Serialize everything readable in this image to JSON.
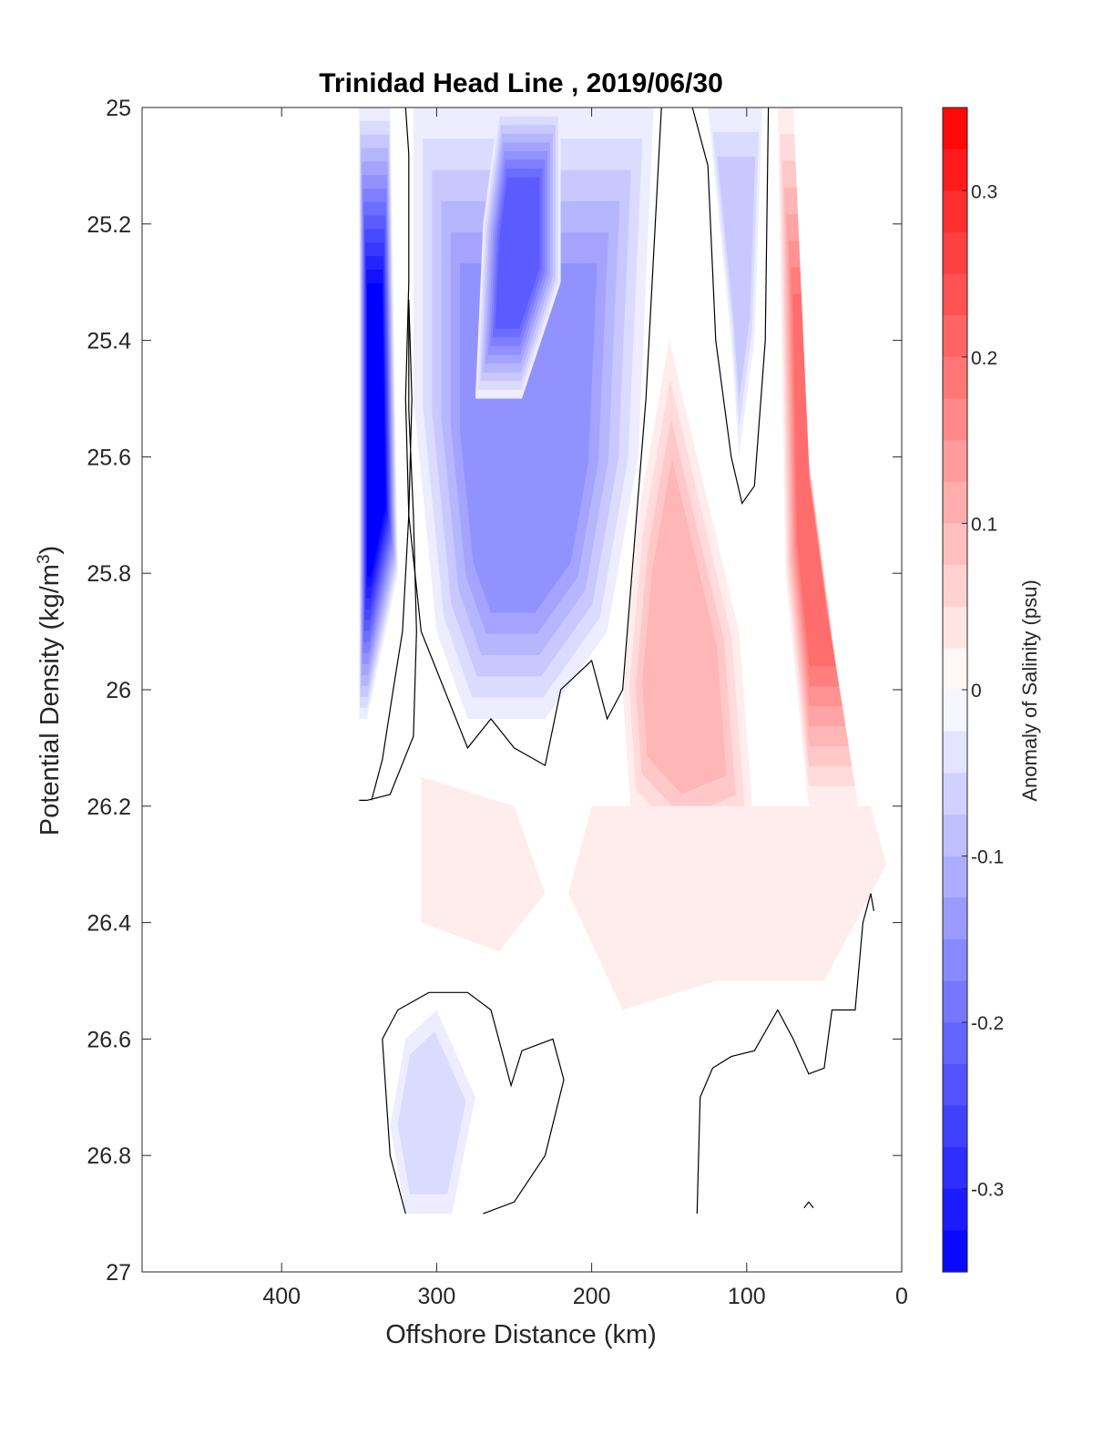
{
  "chart_data": {
    "type": "heatmap",
    "subtype": "filled-contour section",
    "title": "Trinidad Head Line , 2019/06/30",
    "xlabel": "Offshore Distance (km)",
    "ylabel": "Potential Density (kg/m",
    "ylabel_sup": "3",
    "ylabel_close": ")",
    "xlim": [
      490,
      0
    ],
    "x_reversed": true,
    "ylim": [
      25,
      27
    ],
    "y_reversed": true,
    "x_ticks": [
      400,
      300,
      200,
      100,
      0
    ],
    "y_ticks": [
      "25",
      "25.2",
      "25.4",
      "25.6",
      "25.8",
      "26",
      "26.2",
      "26.4",
      "26.6",
      "26.8",
      "27"
    ],
    "colorbar": {
      "label": "Anomaly of Salinity (psu)",
      "range": [
        -0.35,
        0.35
      ],
      "step": 0.025,
      "ticks": [
        "-0.3",
        "-0.2",
        "-0.1",
        "0",
        "0.1",
        "0.2",
        "0.3"
      ],
      "tick_values": [
        -0.3,
        -0.2,
        -0.1,
        0,
        0.1,
        0.2,
        0.3
      ],
      "colormap": "blue-white-red",
      "low_color": "#0000ff",
      "mid_color": "#ffffff",
      "high_color": "#ff0000"
    },
    "grid": false,
    "data_extent": {
      "x": [
        350,
        10
      ],
      "y": [
        25,
        26.9
      ]
    },
    "anomaly_regions": [
      {
        "name": "offshore-edge fresh",
        "x": [
          [
            350,
            25.0
          ],
          [
            330,
            25.0
          ],
          [
            325,
            25.8
          ],
          [
            345,
            26.05
          ],
          [
            350,
            26.05
          ]
        ],
        "level": -0.35
      },
      {
        "name": "offshore fresh core",
        "polygon": [
          [
            315,
            25.0
          ],
          [
            160,
            25.0
          ],
          [
            170,
            25.6
          ],
          [
            190,
            25.9
          ],
          [
            230,
            26.05
          ],
          [
            280,
            26.05
          ],
          [
            300,
            25.9
          ],
          [
            315,
            25.5
          ]
        ],
        "level": -0.15
      },
      {
        "name": "fresh core center",
        "polygon": [
          [
            260,
            25.0
          ],
          [
            220,
            25.0
          ],
          [
            220,
            25.3
          ],
          [
            245,
            25.5
          ],
          [
            275,
            25.5
          ],
          [
            270,
            25.2
          ]
        ],
        "level": -0.225
      },
      {
        "name": "nearshore fresh tongue",
        "polygon": [
          [
            125,
            25.0
          ],
          [
            90,
            25.0
          ],
          [
            95,
            25.4
          ],
          [
            105,
            25.6
          ],
          [
            110,
            25.4
          ]
        ],
        "level": -0.08
      },
      {
        "name": "coastal salty strip",
        "polygon": [
          [
            80,
            25.0
          ],
          [
            70,
            25.0
          ],
          [
            60,
            25.6
          ],
          [
            40,
            26.0
          ],
          [
            28,
            26.2
          ],
          [
            60,
            26.2
          ],
          [
            75,
            25.8
          ]
        ],
        "level": 0.2
      },
      {
        "name": "mid-shelf salty tongue",
        "polygon": [
          [
            150,
            25.4
          ],
          [
            105,
            25.9
          ],
          [
            95,
            26.25
          ],
          [
            140,
            26.3
          ],
          [
            175,
            26.2
          ],
          [
            180,
            26.0
          ],
          [
            170,
            25.7
          ]
        ],
        "level": 0.1
      },
      {
        "name": "broad salty band",
        "polygon": [
          [
            200,
            26.2
          ],
          [
            20,
            26.2
          ],
          [
            10,
            26.3
          ],
          [
            50,
            26.5
          ],
          [
            120,
            26.5
          ],
          [
            180,
            26.55
          ],
          [
            215,
            26.35
          ]
        ],
        "level": 0.03
      },
      {
        "name": "offshore deep salty",
        "polygon": [
          [
            310,
            26.15
          ],
          [
            250,
            26.2
          ],
          [
            230,
            26.35
          ],
          [
            260,
            26.45
          ],
          [
            310,
            26.4
          ]
        ],
        "level": 0.03
      },
      {
        "name": "deep fresh blob",
        "polygon": [
          [
            320,
            26.6
          ],
          [
            300,
            26.55
          ],
          [
            275,
            26.7
          ],
          [
            290,
            26.9
          ],
          [
            320,
            26.9
          ],
          [
            330,
            26.75
          ]
        ],
        "level": -0.06
      }
    ],
    "zero_contours": [
      {
        "name": "zero-contour-offshore",
        "points": [
          [
            350,
            26.19
          ],
          [
            345,
            26.19
          ],
          [
            330,
            26.18
          ],
          [
            315,
            26.08
          ],
          [
            313,
            25.9
          ],
          [
            315,
            25.7
          ],
          [
            318,
            25.52
          ],
          [
            318,
            25.33
          ],
          [
            316,
            25.5
          ],
          [
            318,
            25.7
          ],
          [
            322,
            25.9
          ],
          [
            328,
            26.0
          ],
          [
            335,
            26.12
          ],
          [
            342,
            26.19
          ]
        ]
      },
      {
        "name": "zero-contour-upper",
        "points": [
          [
            320,
            25.0
          ],
          [
            318,
            25.08
          ],
          [
            318,
            25.3
          ],
          [
            320,
            25.5
          ],
          [
            318,
            25.7
          ],
          [
            310,
            25.9
          ],
          [
            295,
            26.0
          ],
          [
            280,
            26.1
          ],
          [
            265,
            26.05
          ],
          [
            250,
            26.1
          ],
          [
            230,
            26.13
          ],
          [
            220,
            26.0
          ],
          [
            200,
            25.95
          ],
          [
            190,
            26.05
          ],
          [
            180,
            26.0
          ],
          [
            165,
            25.5
          ],
          [
            155,
            25.0
          ]
        ]
      },
      {
        "name": "zero-contour-nearshore",
        "points": [
          [
            135,
            25.0
          ],
          [
            125,
            25.1
          ],
          [
            120,
            25.4
          ],
          [
            110,
            25.6
          ],
          [
            103,
            25.68
          ],
          [
            95,
            25.65
          ],
          [
            88,
            25.4
          ],
          [
            86,
            25.0
          ]
        ]
      },
      {
        "name": "zero-contour-deep-offshore",
        "points": [
          [
            320,
            26.9
          ],
          [
            330,
            26.8
          ],
          [
            335,
            26.6
          ],
          [
            325,
            26.55
          ],
          [
            305,
            26.52
          ],
          [
            280,
            26.52
          ],
          [
            265,
            26.55
          ],
          [
            252,
            26.68
          ],
          [
            245,
            26.62
          ],
          [
            225,
            26.6
          ],
          [
            218,
            26.67
          ],
          [
            230,
            26.8
          ],
          [
            250,
            26.88
          ],
          [
            270,
            26.9
          ]
        ]
      },
      {
        "name": "zero-contour-deep-nearshore",
        "points": [
          [
            132,
            26.9
          ],
          [
            130,
            26.7
          ],
          [
            122,
            26.65
          ],
          [
            110,
            26.63
          ],
          [
            95,
            26.62
          ],
          [
            80,
            26.55
          ],
          [
            70,
            26.6
          ],
          [
            60,
            26.66
          ],
          [
            50,
            26.65
          ],
          [
            45,
            26.55
          ],
          [
            30,
            26.55
          ],
          [
            25,
            26.4
          ],
          [
            20,
            26.35
          ],
          [
            18,
            26.38
          ]
        ]
      },
      {
        "name": "zero-contour-caret",
        "points": [
          [
            63,
            26.89
          ],
          [
            60,
            26.88
          ],
          [
            57,
            26.89
          ]
        ]
      }
    ]
  }
}
